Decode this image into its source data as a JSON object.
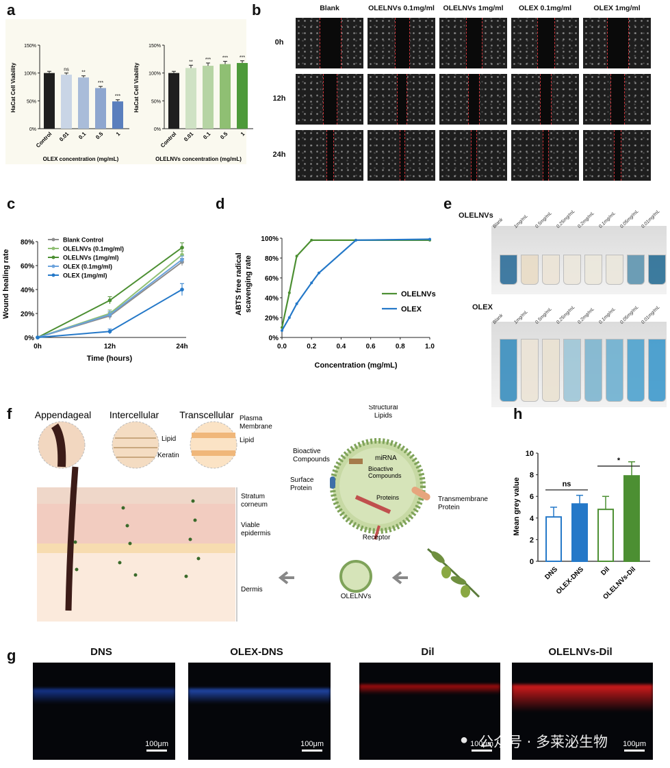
{
  "panel_letters": {
    "a": "a",
    "b": "b",
    "c": "c",
    "d": "d",
    "e": "e",
    "f": "f",
    "g": "g",
    "h": "h"
  },
  "colors": {
    "black_bar": "#1f1f1f",
    "olex_light": "#c9d5e6",
    "olex_mid1": "#a9bcd9",
    "olex_mid2": "#8ea6cf",
    "olex_dark": "#5a7fbd",
    "olenv_light": "#cfe2c4",
    "olenv_mid1": "#b6d4a4",
    "olenv_mid2": "#8fbf73",
    "olenv_dark": "#4d9a3a",
    "blue_line": "#2478c8",
    "green_line": "#4c8f32",
    "grey_line": "#8c8c8c"
  },
  "chart_data": [
    {
      "type": "bar",
      "id": "a-left",
      "categories": [
        "Control",
        "0.01",
        "0.1",
        "0.5",
        "1"
      ],
      "values": [
        100,
        97,
        92,
        73,
        49
      ],
      "errors": [
        3,
        3,
        3,
        3,
        3
      ],
      "significance": [
        "",
        "ns",
        "**",
        "***",
        "***"
      ],
      "xlabel": "OLEX concentration (mg/mL)",
      "ylabel": "HaCat Cell Viability",
      "ylim": [
        0,
        150
      ],
      "yticks": [
        "0%",
        "50%",
        "100%",
        "150%"
      ]
    },
    {
      "type": "bar",
      "id": "a-right",
      "categories": [
        "Control",
        "0.01",
        "0.1",
        "0.5",
        "1"
      ],
      "values": [
        100,
        109,
        113,
        116,
        118
      ],
      "errors": [
        3,
        5,
        5,
        5,
        4
      ],
      "significance": [
        "",
        "**",
        "***",
        "***",
        "***"
      ],
      "xlabel": "OLELNVs concentration (mg/mL)",
      "ylabel": "HaCat Cell Viability",
      "ylim": [
        0,
        150
      ],
      "yticks": [
        "0%",
        "50%",
        "100%",
        "150%"
      ]
    },
    {
      "type": "line",
      "id": "c",
      "x": [
        "0h",
        "12h",
        "24h"
      ],
      "series": [
        {
          "name": "Blank Control",
          "values": [
            0,
            18,
            63
          ],
          "errors": [
            0,
            3,
            3
          ]
        },
        {
          "name": "OLELNVs (0.1mg/ml)",
          "values": [
            0,
            20,
            69
          ],
          "errors": [
            0,
            3,
            3
          ]
        },
        {
          "name": "OLELNVs  (1mg/ml)",
          "values": [
            0,
            31,
            75
          ],
          "errors": [
            0,
            3,
            4
          ]
        },
        {
          "name": "OLEX (0.1mg/ml)",
          "values": [
            0,
            19,
            65
          ],
          "errors": [
            0,
            3,
            3
          ]
        },
        {
          "name": "OLEX (1mg/ml)",
          "values": [
            0,
            5,
            40
          ],
          "errors": [
            0,
            2,
            5
          ]
        }
      ],
      "xlabel": "Time (hours)",
      "ylabel": "Wound healing rate",
      "ylim": [
        0,
        80
      ],
      "yticks": [
        "0%",
        "20%",
        "40%",
        "60%",
        "80%"
      ]
    },
    {
      "type": "line",
      "id": "d",
      "series": [
        {
          "name": "OLELNVs",
          "x": [
            0,
            0.05,
            0.1,
            0.2,
            0.5,
            1.0
          ],
          "values": [
            10,
            45,
            82,
            98,
            98,
            98
          ]
        },
        {
          "name": "OLEX",
          "x": [
            0,
            0.05,
            0.1,
            0.2,
            0.25,
            0.5,
            1.0
          ],
          "values": [
            7,
            20,
            34,
            55,
            65,
            98,
            99
          ]
        }
      ],
      "xlabel": "Concentration (mg/mL)",
      "ylabel": "ABTS free radical scavenging rate",
      "xlim": [
        0,
        1.0
      ],
      "ylim": [
        0,
        100
      ],
      "xticks": [
        "0.0",
        "0.2",
        "0.4",
        "0.6",
        "0.8",
        "1.0"
      ],
      "yticks": [
        "0%",
        "20%",
        "40%",
        "60%",
        "80%",
        "100%"
      ]
    },
    {
      "type": "bar",
      "id": "h",
      "categories": [
        "DNS",
        "OLEX-DNS",
        "Dil",
        "OLELNVs-Dil"
      ],
      "values": [
        4.1,
        5.3,
        4.8,
        7.9
      ],
      "errors": [
        0.9,
        0.8,
        1.2,
        1.3
      ],
      "ylabel": "Mean grey value",
      "ylim": [
        0,
        10
      ],
      "yticks": [
        "0",
        "2",
        "4",
        "6",
        "8",
        "10"
      ],
      "significance": [
        {
          "pair": [
            0,
            1
          ],
          "label": "ns"
        },
        {
          "pair": [
            2,
            3
          ],
          "label": "*"
        }
      ]
    }
  ],
  "panel_b": {
    "columns": [
      "Blank",
      "OLELNVs 0.1mg/ml",
      "OLELNVs 1mg/ml",
      "OLEX 0.1mg/ml",
      "OLEX 1mg/ml"
    ],
    "rows": [
      "0h",
      "12h",
      "24h"
    ]
  },
  "panel_e": {
    "row1_label": "OLELNVs",
    "row2_label": "OLEX",
    "conc_labels": [
      "Blank",
      "1mg/mL",
      "0.5mg/mL",
      "0.25mg/mL",
      "0.2mg/mL",
      "0.1mg/mL",
      "0.05mg/mL",
      "0.01mg/mL"
    ]
  },
  "panel_f": {
    "route_titles": [
      "Appendageal",
      "Intercellular",
      "Transcellular"
    ],
    "zoom_labels": [
      "Lipid",
      "Keratin",
      "Plasma Membrane",
      "Lipid"
    ],
    "layer_labels": [
      "Stratum corneum",
      "Viable epidermis",
      "Dermis"
    ],
    "vesicle_labels": {
      "structural_lipids": "Structural Lipids",
      "bioactive_outer": "Bioactive Compounds",
      "mirna": "miRNA",
      "bioactive_inner": "Bioactive Compounds",
      "surface_protein": "Surface Protein",
      "proteins": "Proteins",
      "transmembrane": "Transmembrane Protein",
      "receptor": "Receptor",
      "olelnvs": "OLELNVs"
    }
  },
  "panel_g": {
    "titles": [
      "DNS",
      "OLEX-DNS",
      "Dil",
      "OLELNVs-Dil"
    ],
    "scalebar": "100μm"
  },
  "watermark": "公众号 · 多莱泌生物"
}
